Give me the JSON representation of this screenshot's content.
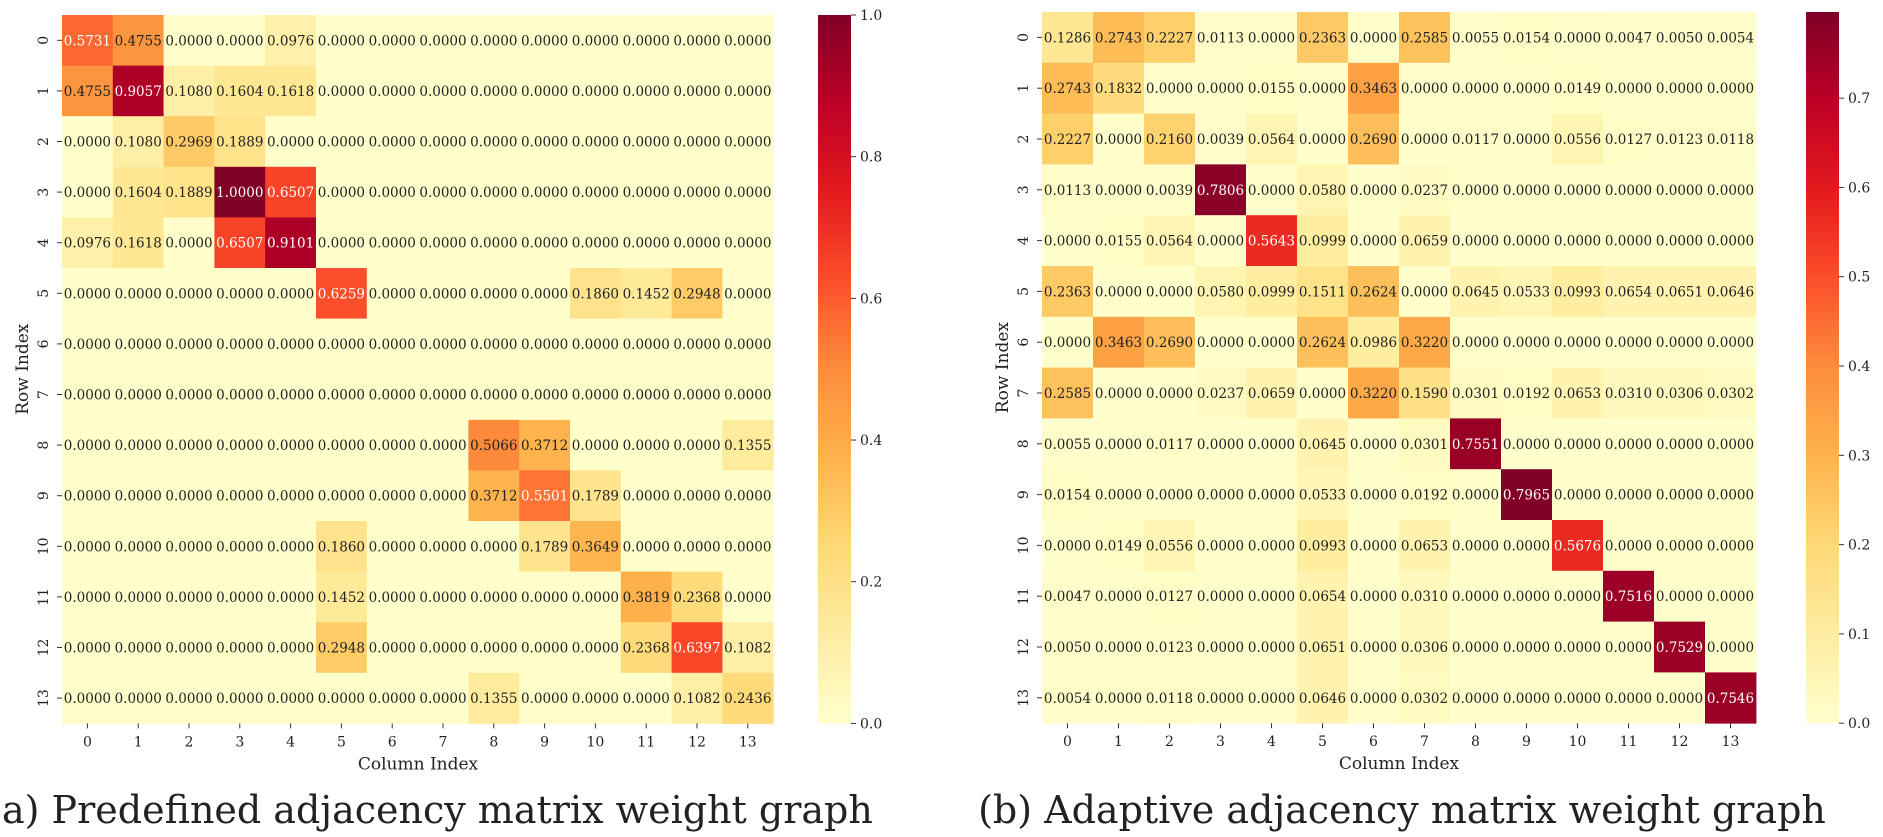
{
  "chart_data": [
    {
      "type": "heatmap",
      "caption": "(a) Predefined adjacency matrix weight graph",
      "xlabel": "Column Index",
      "ylabel": "Row Index",
      "x_ticks": [
        "0",
        "1",
        "2",
        "3",
        "4",
        "5",
        "6",
        "7",
        "8",
        "9",
        "10",
        "11",
        "12",
        "13"
      ],
      "y_ticks": [
        "0",
        "1",
        "2",
        "3",
        "4",
        "5",
        "6",
        "7",
        "8",
        "9",
        "10",
        "11",
        "12",
        "13"
      ],
      "value_range": [
        0,
        1.0
      ],
      "colorbar_ticks": [
        "0.0",
        "0.2",
        "0.4",
        "0.6",
        "0.8",
        "1.0"
      ],
      "colorbar_tick_values": [
        0,
        0.2,
        0.4,
        0.6,
        0.8,
        1.0
      ],
      "values": [
        [
          "0.5731",
          "0.4755",
          "0.0000",
          "0.0000",
          "0.0976",
          "0.0000",
          "0.0000",
          "0.0000",
          "0.0000",
          "0.0000",
          "0.0000",
          "0.0000",
          "0.0000",
          "0.0000"
        ],
        [
          "0.4755",
          "0.9057",
          "0.1080",
          "0.1604",
          "0.1618",
          "0.0000",
          "0.0000",
          "0.0000",
          "0.0000",
          "0.0000",
          "0.0000",
          "0.0000",
          "0.0000",
          "0.0000"
        ],
        [
          "0.0000",
          "0.1080",
          "0.2969",
          "0.1889",
          "0.0000",
          "0.0000",
          "0.0000",
          "0.0000",
          "0.0000",
          "0.0000",
          "0.0000",
          "0.0000",
          "0.0000",
          "0.0000"
        ],
        [
          "0.0000",
          "0.1604",
          "0.1889",
          "1.0000",
          "0.6507",
          "0.0000",
          "0.0000",
          "0.0000",
          "0.0000",
          "0.0000",
          "0.0000",
          "0.0000",
          "0.0000",
          "0.0000"
        ],
        [
          "0.0976",
          "0.1618",
          "0.0000",
          "0.6507",
          "0.9101",
          "0.0000",
          "0.0000",
          "0.0000",
          "0.0000",
          "0.0000",
          "0.0000",
          "0.0000",
          "0.0000",
          "0.0000"
        ],
        [
          "0.0000",
          "0.0000",
          "0.0000",
          "0.0000",
          "0.0000",
          "0.6259",
          "0.0000",
          "0.0000",
          "0.0000",
          "0.0000",
          "0.1860",
          "0.1452",
          "0.2948",
          "0.0000"
        ],
        [
          "0.0000",
          "0.0000",
          "0.0000",
          "0.0000",
          "0.0000",
          "0.0000",
          "0.0000",
          "0.0000",
          "0.0000",
          "0.0000",
          "0.0000",
          "0.0000",
          "0.0000",
          "0.0000"
        ],
        [
          "0.0000",
          "0.0000",
          "0.0000",
          "0.0000",
          "0.0000",
          "0.0000",
          "0.0000",
          "0.0000",
          "0.0000",
          "0.0000",
          "0.0000",
          "0.0000",
          "0.0000",
          "0.0000"
        ],
        [
          "0.0000",
          "0.0000",
          "0.0000",
          "0.0000",
          "0.0000",
          "0.0000",
          "0.0000",
          "0.0000",
          "0.5066",
          "0.3712",
          "0.0000",
          "0.0000",
          "0.0000",
          "0.1355"
        ],
        [
          "0.0000",
          "0.0000",
          "0.0000",
          "0.0000",
          "0.0000",
          "0.0000",
          "0.0000",
          "0.0000",
          "0.3712",
          "0.5501",
          "0.1789",
          "0.0000",
          "0.0000",
          "0.0000"
        ],
        [
          "0.0000",
          "0.0000",
          "0.0000",
          "0.0000",
          "0.0000",
          "0.1860",
          "0.0000",
          "0.0000",
          "0.0000",
          "0.1789",
          "0.3649",
          "0.0000",
          "0.0000",
          "0.0000"
        ],
        [
          "0.0000",
          "0.0000",
          "0.0000",
          "0.0000",
          "0.0000",
          "0.1452",
          "0.0000",
          "0.0000",
          "0.0000",
          "0.0000",
          "0.0000",
          "0.3819",
          "0.2368",
          "0.0000"
        ],
        [
          "0.0000",
          "0.0000",
          "0.0000",
          "0.0000",
          "0.0000",
          "0.2948",
          "0.0000",
          "0.0000",
          "0.0000",
          "0.0000",
          "0.0000",
          "0.2368",
          "0.6397",
          "0.1082"
        ],
        [
          "0.0000",
          "0.0000",
          "0.0000",
          "0.0000",
          "0.0000",
          "0.0000",
          "0.0000",
          "0.0000",
          "0.1355",
          "0.0000",
          "0.0000",
          "0.0000",
          "0.1082",
          "0.2436"
        ]
      ]
    },
    {
      "type": "heatmap",
      "caption": "(b) Adaptive adjacency matrix weight graph",
      "xlabel": "Column Index",
      "ylabel": "Row Index",
      "x_ticks": [
        "0",
        "1",
        "2",
        "3",
        "4",
        "5",
        "6",
        "7",
        "8",
        "9",
        "10",
        "11",
        "12",
        "13"
      ],
      "y_ticks": [
        "0",
        "1",
        "2",
        "3",
        "4",
        "5",
        "6",
        "7",
        "8",
        "9",
        "10",
        "11",
        "12",
        "13"
      ],
      "value_range": [
        0,
        0.7965
      ],
      "colorbar_ticks": [
        "0.0",
        "0.1",
        "0.2",
        "0.3",
        "0.4",
        "0.5",
        "0.6",
        "0.7"
      ],
      "colorbar_tick_values": [
        0,
        0.1,
        0.2,
        0.3,
        0.4,
        0.5,
        0.6,
        0.7
      ],
      "values": [
        [
          "0.1286",
          "0.2743",
          "0.2227",
          "0.0113",
          "0.0000",
          "0.2363",
          "0.0000",
          "0.2585",
          "0.0055",
          "0.0154",
          "0.0000",
          "0.0047",
          "0.0050",
          "0.0054"
        ],
        [
          "0.2743",
          "0.1832",
          "0.0000",
          "0.0000",
          "0.0155",
          "0.0000",
          "0.3463",
          "0.0000",
          "0.0000",
          "0.0000",
          "0.0149",
          "0.0000",
          "0.0000",
          "0.0000"
        ],
        [
          "0.2227",
          "0.0000",
          "0.2160",
          "0.0039",
          "0.0564",
          "0.0000",
          "0.2690",
          "0.0000",
          "0.0117",
          "0.0000",
          "0.0556",
          "0.0127",
          "0.0123",
          "0.0118"
        ],
        [
          "0.0113",
          "0.0000",
          "0.0039",
          "0.7806",
          "0.0000",
          "0.0580",
          "0.0000",
          "0.0237",
          "0.0000",
          "0.0000",
          "0.0000",
          "0.0000",
          "0.0000",
          "0.0000"
        ],
        [
          "0.0000",
          "0.0155",
          "0.0564",
          "0.0000",
          "0.5643",
          "0.0999",
          "0.0000",
          "0.0659",
          "0.0000",
          "0.0000",
          "0.0000",
          "0.0000",
          "0.0000",
          "0.0000"
        ],
        [
          "0.2363",
          "0.0000",
          "0.0000",
          "0.0580",
          "0.0999",
          "0.1511",
          "0.2624",
          "0.0000",
          "0.0645",
          "0.0533",
          "0.0993",
          "0.0654",
          "0.0651",
          "0.0646"
        ],
        [
          "0.0000",
          "0.3463",
          "0.2690",
          "0.0000",
          "0.0000",
          "0.2624",
          "0.0986",
          "0.3220",
          "0.0000",
          "0.0000",
          "0.0000",
          "0.0000",
          "0.0000",
          "0.0000"
        ],
        [
          "0.2585",
          "0.0000",
          "0.0000",
          "0.0237",
          "0.0659",
          "0.0000",
          "0.3220",
          "0.1590",
          "0.0301",
          "0.0192",
          "0.0653",
          "0.0310",
          "0.0306",
          "0.0302"
        ],
        [
          "0.0055",
          "0.0000",
          "0.0117",
          "0.0000",
          "0.0000",
          "0.0645",
          "0.0000",
          "0.0301",
          "0.7551",
          "0.0000",
          "0.0000",
          "0.0000",
          "0.0000",
          "0.0000"
        ],
        [
          "0.0154",
          "0.0000",
          "0.0000",
          "0.0000",
          "0.0000",
          "0.0533",
          "0.0000",
          "0.0192",
          "0.0000",
          "0.7965",
          "0.0000",
          "0.0000",
          "0.0000",
          "0.0000"
        ],
        [
          "0.0000",
          "0.0149",
          "0.0556",
          "0.0000",
          "0.0000",
          "0.0993",
          "0.0000",
          "0.0653",
          "0.0000",
          "0.0000",
          "0.5676",
          "0.0000",
          "0.0000",
          "0.0000"
        ],
        [
          "0.0047",
          "0.0000",
          "0.0127",
          "0.0000",
          "0.0000",
          "0.0654",
          "0.0000",
          "0.0310",
          "0.0000",
          "0.0000",
          "0.0000",
          "0.7516",
          "0.0000",
          "0.0000"
        ],
        [
          "0.0050",
          "0.0000",
          "0.0123",
          "0.0000",
          "0.0000",
          "0.0651",
          "0.0000",
          "0.0306",
          "0.0000",
          "0.0000",
          "0.0000",
          "0.0000",
          "0.7529",
          "0.0000"
        ],
        [
          "0.0054",
          "0.0000",
          "0.0118",
          "0.0000",
          "0.0000",
          "0.0646",
          "0.0000",
          "0.0302",
          "0.0000",
          "0.0000",
          "0.0000",
          "0.0000",
          "0.0000",
          "0.7546"
        ]
      ]
    }
  ]
}
